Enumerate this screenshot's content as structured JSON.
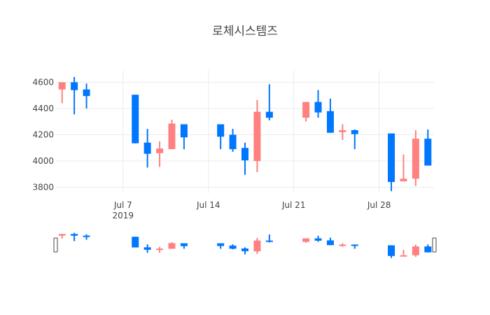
{
  "title": "로체시스템즈",
  "colors": {
    "increasing": "#FF8080",
    "decreasing": "#0077FF",
    "grid": "#EBEBEB",
    "text": "#444444",
    "slider_handle_border": "#444444"
  },
  "chart_data": {
    "type": "candlestick",
    "title": "로체시스템즈",
    "xlabel": "",
    "ylabel": "",
    "ylim": [
      3760,
      4680
    ],
    "yticks": [
      3800,
      4000,
      4200,
      4400,
      4600
    ],
    "xticks": [
      {
        "date": "2019-07-07",
        "label": "Jul 7",
        "sublabel": "2019"
      },
      {
        "date": "2019-07-14",
        "label": "Jul 14",
        "sublabel": ""
      },
      {
        "date": "2019-07-21",
        "label": "Jul 21",
        "sublabel": ""
      },
      {
        "date": "2019-07-28",
        "label": "Jul 28",
        "sublabel": ""
      }
    ],
    "grid": true,
    "legend": false,
    "rangeslider": true,
    "x_range": [
      "2019-07-01T12:00",
      "2019-08-01T12:00"
    ],
    "series": [
      {
        "date": "2019-07-02",
        "open": 4545,
        "high": 4600,
        "low": 4440,
        "close": 4600
      },
      {
        "date": "2019-07-03",
        "open": 4600,
        "high": 4640,
        "low": 4355,
        "close": 4540
      },
      {
        "date": "2019-07-04",
        "open": 4545,
        "high": 4590,
        "low": 4400,
        "close": 4495
      },
      {
        "date": "2019-07-08",
        "open": 4505,
        "high": 4505,
        "low": 4135,
        "close": 4135
      },
      {
        "date": "2019-07-09",
        "open": 4140,
        "high": 4245,
        "low": 3950,
        "close": 4055
      },
      {
        "date": "2019-07-10",
        "open": 4060,
        "high": 4150,
        "low": 3955,
        "close": 4095
      },
      {
        "date": "2019-07-11",
        "open": 4090,
        "high": 4315,
        "low": 4090,
        "close": 4285
      },
      {
        "date": "2019-07-12",
        "open": 4280,
        "high": 4280,
        "low": 4090,
        "close": 4180
      },
      {
        "date": "2019-07-15",
        "open": 4280,
        "high": 4280,
        "low": 4090,
        "close": 4185
      },
      {
        "date": "2019-07-16",
        "open": 4200,
        "high": 4245,
        "low": 4070,
        "close": 4090
      },
      {
        "date": "2019-07-17",
        "open": 4100,
        "high": 4140,
        "low": 3895,
        "close": 4005
      },
      {
        "date": "2019-07-18",
        "open": 4000,
        "high": 4465,
        "low": 3915,
        "close": 4375
      },
      {
        "date": "2019-07-19",
        "open": 4375,
        "high": 4585,
        "low": 4310,
        "close": 4330
      },
      {
        "date": "2019-07-22",
        "open": 4330,
        "high": 4450,
        "low": 4300,
        "close": 4450
      },
      {
        "date": "2019-07-23",
        "open": 4450,
        "high": 4540,
        "low": 4330,
        "close": 4370
      },
      {
        "date": "2019-07-24",
        "open": 4380,
        "high": 4475,
        "low": 4215,
        "close": 4215
      },
      {
        "date": "2019-07-25",
        "open": 4220,
        "high": 4280,
        "low": 4160,
        "close": 4235
      },
      {
        "date": "2019-07-26",
        "open": 4235,
        "high": 4240,
        "low": 4090,
        "close": 4205
      },
      {
        "date": "2019-07-29",
        "open": 4210,
        "high": 4210,
        "low": 3770,
        "close": 3840
      },
      {
        "date": "2019-07-30",
        "open": 3845,
        "high": 4050,
        "low": 3845,
        "close": 3865
      },
      {
        "date": "2019-07-31",
        "open": 3865,
        "high": 4235,
        "low": 3810,
        "close": 4170
      },
      {
        "date": "2019-08-01",
        "open": 4170,
        "high": 4240,
        "low": 3965,
        "close": 3965
      }
    ]
  }
}
